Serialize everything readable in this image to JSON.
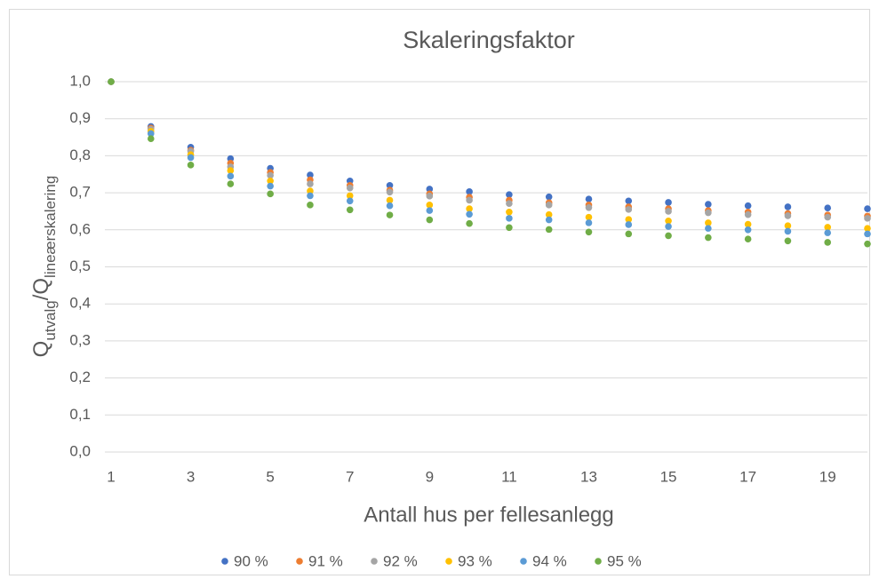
{
  "chart_data": {
    "type": "scatter",
    "title": "Skaleringsfaktor",
    "x_label": "Antall hus per fellesanlegg",
    "y_label_parts": [
      "Q",
      "utvalg",
      "/Q",
      "lineærskalering"
    ],
    "x": [
      1,
      2,
      3,
      4,
      5,
      6,
      7,
      8,
      9,
      10,
      11,
      12,
      13,
      14,
      15,
      16,
      17,
      18,
      19,
      20
    ],
    "series": [
      {
        "name": "90 %",
        "color": "#4472c4",
        "values": [
          1.0,
          0.879,
          0.823,
          0.792,
          0.766,
          0.748,
          0.732,
          0.72,
          0.71,
          0.703,
          0.695,
          0.689,
          0.683,
          0.678,
          0.674,
          0.669,
          0.665,
          0.662,
          0.659,
          0.657
        ]
      },
      {
        "name": "91 %",
        "color": "#ed7d31",
        "values": [
          1.0,
          0.875,
          0.815,
          0.78,
          0.755,
          0.735,
          0.72,
          0.707,
          0.697,
          0.688,
          0.68,
          0.673,
          0.667,
          0.662,
          0.657,
          0.652,
          0.648,
          0.644,
          0.64,
          0.637
        ]
      },
      {
        "name": "92 %",
        "color": "#a5a5a5",
        "values": [
          1.0,
          0.872,
          0.812,
          0.77,
          0.747,
          0.724,
          0.713,
          0.702,
          0.691,
          0.68,
          0.671,
          0.667,
          0.66,
          0.655,
          0.65,
          0.646,
          0.641,
          0.638,
          0.634,
          0.631
        ]
      },
      {
        "name": "93 %",
        "color": "#ffc000",
        "values": [
          1.0,
          0.866,
          0.803,
          0.76,
          0.732,
          0.705,
          0.692,
          0.68,
          0.667,
          0.657,
          0.648,
          0.641,
          0.634,
          0.628,
          0.624,
          0.619,
          0.615,
          0.611,
          0.607,
          0.604
        ]
      },
      {
        "name": "94 %",
        "color": "#5b9bd5",
        "values": [
          1.0,
          0.86,
          0.795,
          0.745,
          0.718,
          0.692,
          0.678,
          0.665,
          0.652,
          0.642,
          0.631,
          0.627,
          0.619,
          0.614,
          0.609,
          0.604,
          0.6,
          0.596,
          0.592,
          0.589
        ]
      },
      {
        "name": "95 %",
        "color": "#70ad47",
        "values": [
          1.0,
          0.846,
          0.775,
          0.724,
          0.697,
          0.667,
          0.654,
          0.64,
          0.627,
          0.617,
          0.606,
          0.601,
          0.594,
          0.589,
          0.584,
          0.579,
          0.575,
          0.57,
          0.566,
          0.562
        ]
      }
    ],
    "xlim": [
      1,
      20
    ],
    "xticks": [
      1,
      3,
      5,
      7,
      9,
      11,
      13,
      15,
      17,
      19
    ],
    "ylim": [
      0,
      1
    ],
    "yticks": [
      {
        "value": 0,
        "label": "0,0"
      },
      {
        "value": 0.1,
        "label": "0,1"
      },
      {
        "value": 0.2,
        "label": "0,2"
      },
      {
        "value": 0.3,
        "label": "0,3"
      },
      {
        "value": 0.4,
        "label": "0,4"
      },
      {
        "value": 0.5,
        "label": "0,5"
      },
      {
        "value": 0.6,
        "label": "0,6"
      },
      {
        "value": 0.7,
        "label": "0,7"
      },
      {
        "value": 0.8,
        "label": "0,8"
      },
      {
        "value": 0.9,
        "label": "0,9"
      },
      {
        "value": 1,
        "label": "1,0"
      }
    ],
    "grid": true,
    "legend": "bottom"
  }
}
